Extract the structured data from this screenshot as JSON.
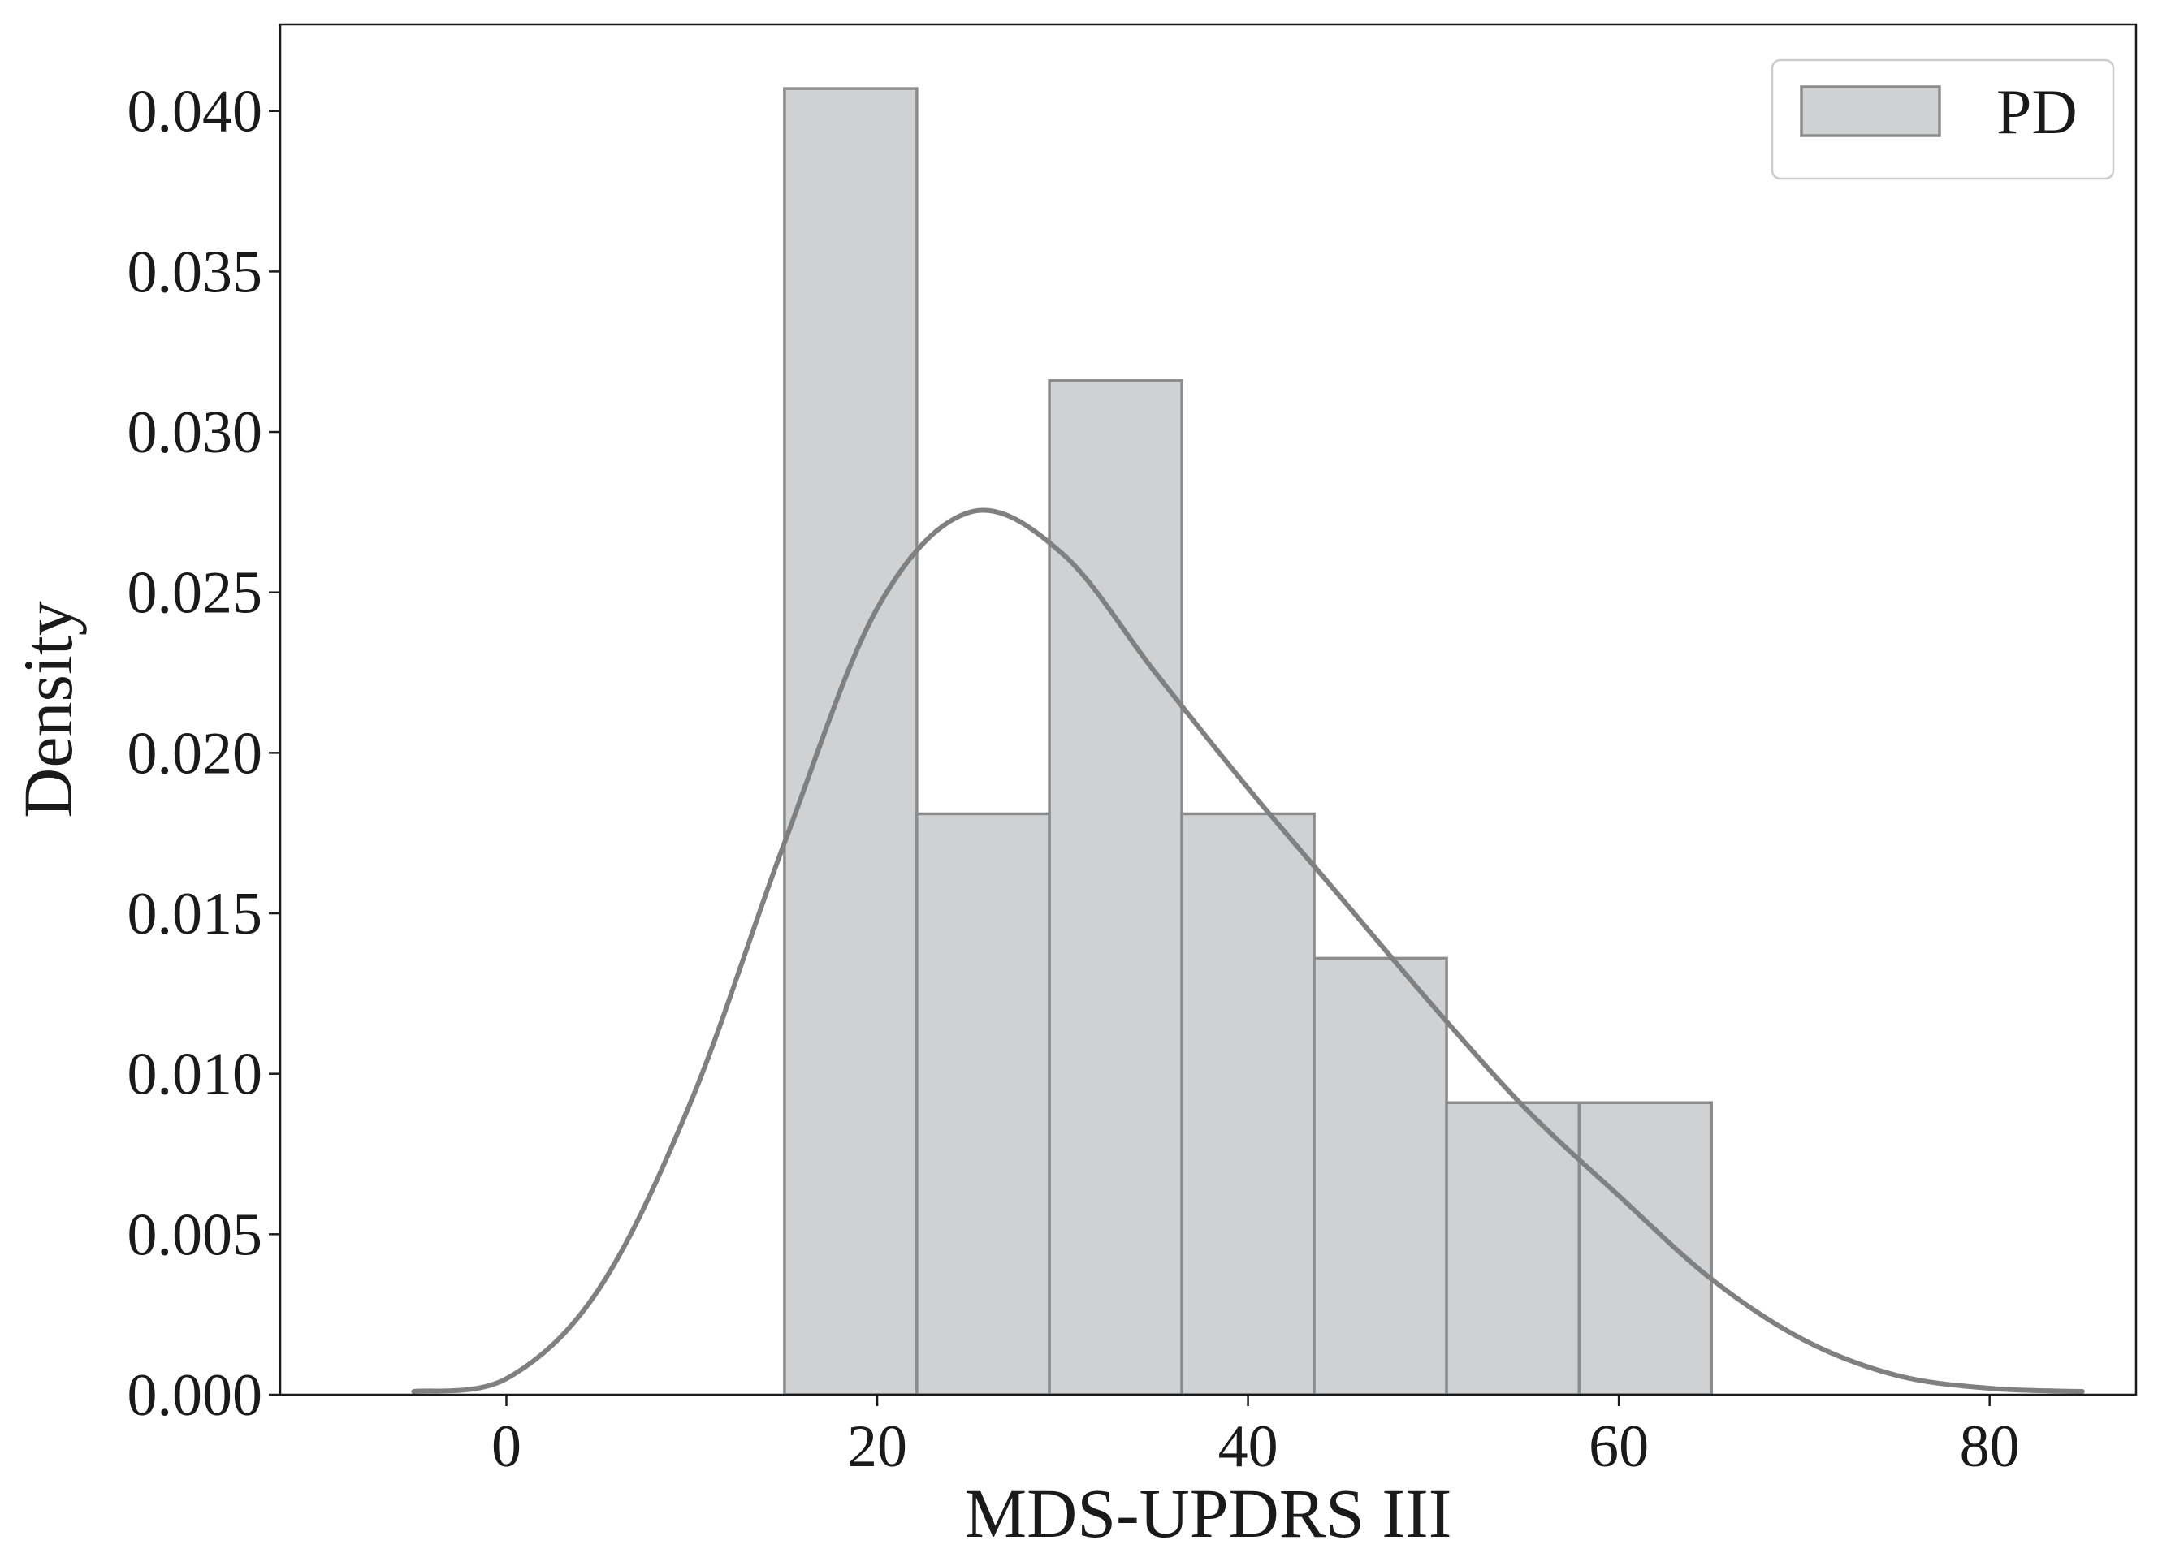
{
  "chart_data": {
    "type": "bar",
    "xlabel": "MDS-UPDRS III",
    "ylabel": "Density",
    "xlim": [
      -12.2,
      87.9
    ],
    "ylim": [
      0,
      0.0427
    ],
    "xticks": [
      0,
      20,
      40,
      60,
      80
    ],
    "xtick_labels": [
      "0",
      "20",
      "40",
      "60",
      "80"
    ],
    "yticks": [
      0,
      0.005,
      0.01,
      0.015,
      0.02,
      0.025,
      0.03,
      0.035,
      0.04
    ],
    "ytick_labels": [
      "0.000",
      "0.005",
      "0.010",
      "0.015",
      "0.020",
      "0.025",
      "0.030",
      "0.035",
      "0.040"
    ],
    "grid": false,
    "legend_position": "top-right",
    "series": [
      {
        "name": "PD",
        "kind": "histogram",
        "bin_edges": [
          15.0,
          22.14,
          29.29,
          36.43,
          43.57,
          50.71,
          57.86,
          65.0
        ],
        "values": [
          0.0407,
          0.0181,
          0.0316,
          0.0181,
          0.0136,
          0.0091,
          0.0091
        ],
        "color": "#d0d1d3",
        "edge_color": "#8c8c8c"
      },
      {
        "kind": "kde",
        "color": "#808080",
        "x": [
          -5,
          0,
          5,
          10,
          15,
          20,
          25,
          30,
          35,
          40,
          45,
          50,
          55,
          60,
          65,
          70,
          75,
          80,
          85
        ],
        "y": [
          0.0001,
          0.0005,
          0.0033,
          0.0092,
          0.0172,
          0.0245,
          0.0275,
          0.0262,
          0.0225,
          0.0189,
          0.0155,
          0.0121,
          0.0089,
          0.0062,
          0.0036,
          0.0017,
          0.0006,
          0.0002,
          0.0001
        ]
      }
    ]
  }
}
